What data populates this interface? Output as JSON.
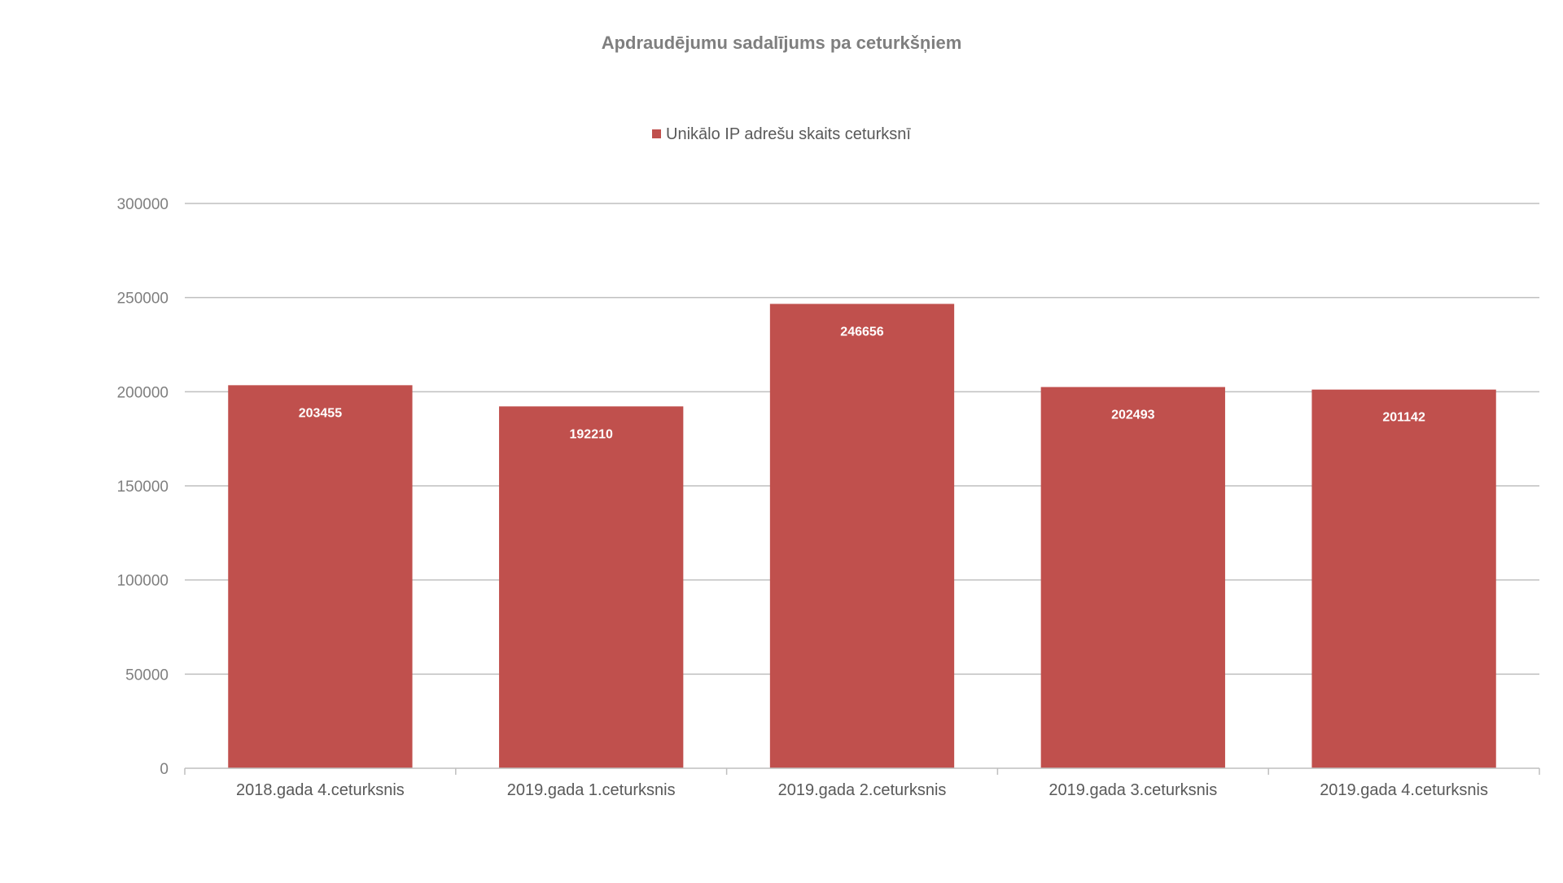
{
  "chart_data": {
    "type": "bar",
    "title": "Apdraudējumu sadalījums pa ceturkšņiem",
    "categories": [
      "2018.gada 4.ceturksnis",
      "2019.gada 1.ceturksnis",
      "2019.gada 2.ceturksnis",
      "2019.gada 3.ceturksnis",
      "2019.gada 4.ceturksnis"
    ],
    "series": [
      {
        "name": "Unikālo IP adrešu skaits ceturksnī",
        "values": [
          203455,
          192210,
          246656,
          202493,
          201142
        ],
        "color": "#c0504d"
      }
    ],
    "data_labels": [
      "203455",
      "192210",
      "246656",
      "202493",
      "201142"
    ],
    "y_ticks": [
      "0",
      "50000",
      "100000",
      "150000",
      "200000",
      "250000",
      "300000"
    ],
    "ylim": [
      0,
      300000
    ],
    "grid": true,
    "legend_position": "top"
  }
}
